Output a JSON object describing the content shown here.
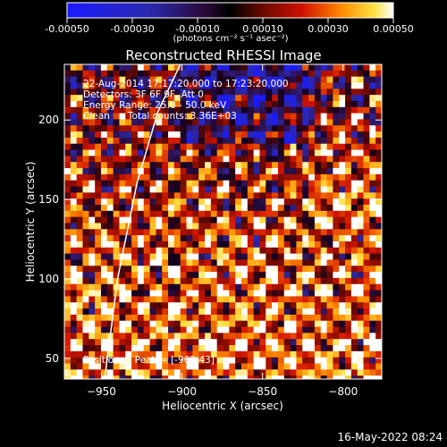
{
  "chart_data": {
    "type": "heatmap",
    "title": "Reconstructed RHESSI Image",
    "xlabel": "Heliocentric X (arcsec)",
    "ylabel": "Heliocentric Y (arcsec)",
    "xlim": [
      -973,
      -776
    ],
    "ylim": [
      37,
      235
    ],
    "xticks": [
      -950,
      -900,
      -850,
      -800
    ],
    "xtick_labels": [
      "−950",
      "−900",
      "−850",
      "−800"
    ],
    "yticks": [
      50,
      100,
      150,
      200
    ],
    "ytick_labels": [
      "50",
      "100",
      "150",
      "200"
    ],
    "colorbar": {
      "min": -0.0005,
      "max": 0.0005,
      "ticks": [
        -0.0005,
        -0.0003,
        -0.0001,
        0.0001,
        0.0003,
        0.0005
      ],
      "tick_labels": [
        "-0.00050",
        "-0.00030",
        "-0.00010",
        "0.00010",
        "0.00030",
        "0.00050"
      ],
      "units": "(photons cm⁻² s⁻¹ asec⁻²)"
    },
    "annotations": [
      "22-Aug-2014 17:17:20.000 to 17:23:20.000",
      "Detectors: 3F 6F 9F, Att 0",
      "Energy Range: 25.0 - 50.0 keV",
      "Clean      Total counts: 3.36E+03"
    ],
    "peak_label": "Position of Peak = [-962,43]",
    "peak": [
      -962,
      43
    ],
    "limb_curve": {
      "x": [
        -948,
        -940,
        -928,
        -915,
        -901
      ],
      "y": [
        37,
        100,
        160,
        205,
        235
      ]
    },
    "grid": false
  },
  "footer": {
    "timestamp": "16-May-2022 08:24"
  },
  "colors": {
    "background": "#000000",
    "text": "#ffffff"
  }
}
